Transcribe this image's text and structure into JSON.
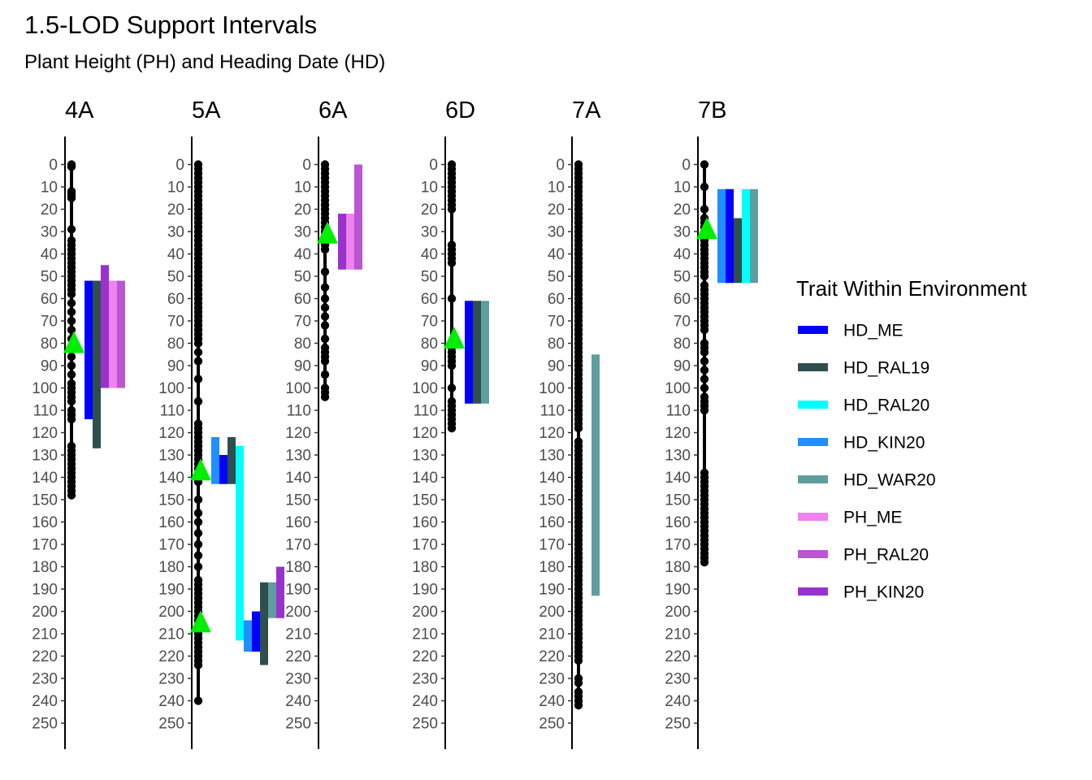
{
  "chart_data": {
    "type": "linkage-map",
    "title": "1.5-LOD Support Intervals",
    "subtitle": "Plant Height (PH) and Heading Date (HD)",
    "y_ticks": [
      0,
      10,
      20,
      30,
      40,
      50,
      60,
      70,
      80,
      90,
      100,
      110,
      120,
      130,
      140,
      150,
      160,
      170,
      180,
      190,
      200,
      210,
      220,
      230,
      240,
      250
    ],
    "ylim": [
      -10,
      262
    ],
    "y_reversed": true,
    "legend": {
      "title": "Trait Within Environment",
      "placement": "right",
      "items": [
        {
          "label": "HD_ME",
          "color": "#0000FF"
        },
        {
          "label": "HD_RAL19",
          "color": "#2F4F4F"
        },
        {
          "label": "HD_RAL20",
          "color": "#00FFFF"
        },
        {
          "label": "HD_KIN20",
          "color": "#1E90FF"
        },
        {
          "label": "HD_WAR20",
          "color": "#5F9EA0"
        },
        {
          "label": "PH_ME",
          "color": "#EE82EE"
        },
        {
          "label": "PH_RAL20",
          "color": "#BA55D3"
        },
        {
          "label": "PH_KIN20",
          "color": "#9932CC"
        }
      ]
    },
    "chromosomes": [
      {
        "name": "4A",
        "length": 149,
        "markers": [
          0,
          1,
          12,
          13,
          14,
          15,
          29,
          34,
          36,
          38,
          40,
          42,
          44,
          46,
          48,
          50,
          52,
          54,
          56,
          58,
          62,
          66,
          70,
          74,
          78,
          86,
          90,
          94,
          98,
          100,
          102,
          104,
          106,
          110,
          112,
          114,
          126,
          128,
          130,
          132,
          134,
          136,
          138,
          140,
          142,
          144,
          146,
          148
        ],
        "intervals": [
          {
            "trait": "HD_ME",
            "start": 52,
            "end": 114
          },
          {
            "trait": "HD_RAL19",
            "start": 52,
            "end": 127
          },
          {
            "trait": "PH_KIN20",
            "start": 45,
            "end": 100
          },
          {
            "trait": "PH_ME",
            "start": 52,
            "end": 100
          },
          {
            "trait": "PH_RAL20",
            "start": 52,
            "end": 100
          }
        ],
        "peaks": [
          80
        ]
      },
      {
        "name": "5A",
        "length": 240,
        "markers": [
          0,
          2,
          4,
          6,
          8,
          10,
          12,
          14,
          16,
          18,
          20,
          22,
          24,
          26,
          28,
          30,
          32,
          34,
          36,
          38,
          40,
          42,
          44,
          46,
          48,
          50,
          52,
          54,
          56,
          58,
          60,
          62,
          64,
          66,
          68,
          70,
          72,
          74,
          76,
          78,
          80,
          84,
          88,
          96,
          106,
          116,
          118,
          120,
          122,
          124,
          126,
          128,
          130,
          132,
          134,
          136,
          138,
          140,
          142,
          150,
          156,
          160,
          165,
          170,
          175,
          180,
          186,
          188,
          190,
          192,
          194,
          196,
          198,
          200,
          202,
          204,
          206,
          208,
          210,
          212,
          214,
          216,
          218,
          220,
          222,
          224,
          240
        ],
        "intervals": [
          {
            "trait": "HD_KIN20",
            "start": 122,
            "end": 143
          },
          {
            "trait": "HD_ME",
            "start": 130,
            "end": 143
          },
          {
            "trait": "HD_RAL19",
            "start": 122,
            "end": 143
          },
          {
            "trait": "HD_RAL20",
            "start": 126,
            "end": 213
          },
          {
            "trait": "HD_KIN20",
            "start": 204,
            "end": 218
          },
          {
            "trait": "HD_ME",
            "start": 200,
            "end": 218
          },
          {
            "trait": "HD_RAL19",
            "start": 187,
            "end": 224
          },
          {
            "trait": "HD_WAR20",
            "start": 187,
            "end": 203
          },
          {
            "trait": "PH_KIN20",
            "start": 180,
            "end": 203
          }
        ],
        "peaks": [
          137,
          205
        ]
      },
      {
        "name": "6A",
        "length": 104,
        "markers": [
          0,
          2,
          4,
          6,
          8,
          10,
          12,
          14,
          16,
          18,
          20,
          22,
          24,
          26,
          28,
          30,
          32,
          34,
          36,
          38,
          48,
          55,
          60,
          64,
          68,
          72,
          78,
          82,
          84,
          86,
          88,
          94,
          100,
          102,
          104
        ],
        "intervals": [
          {
            "trait": "PH_KIN20",
            "start": 22,
            "end": 47
          },
          {
            "trait": "PH_ME",
            "start": 22,
            "end": 47
          },
          {
            "trait": "PH_RAL20",
            "start": 0,
            "end": 47
          }
        ],
        "peaks": [
          31
        ]
      },
      {
        "name": "6D",
        "length": 118,
        "markers": [
          0,
          2,
          4,
          6,
          8,
          10,
          12,
          14,
          16,
          18,
          20,
          36,
          38,
          40,
          42,
          44,
          60,
          80,
          82,
          84,
          86,
          88,
          90,
          100,
          106,
          108,
          110,
          112,
          114,
          116,
          118
        ],
        "intervals": [
          {
            "trait": "HD_ME",
            "start": 61,
            "end": 107
          },
          {
            "trait": "HD_RAL19",
            "start": 61,
            "end": 107
          },
          {
            "trait": "HD_WAR20",
            "start": 61,
            "end": 107
          }
        ],
        "peaks": [
          78
        ]
      },
      {
        "name": "7A",
        "length": 242,
        "markers": [
          0,
          2,
          4,
          6,
          8,
          10,
          12,
          14,
          16,
          18,
          20,
          22,
          24,
          26,
          28,
          30,
          32,
          34,
          36,
          38,
          40,
          42,
          44,
          46,
          48,
          50,
          52,
          54,
          56,
          58,
          60,
          62,
          64,
          66,
          68,
          70,
          72,
          74,
          76,
          78,
          80,
          82,
          84,
          86,
          88,
          90,
          92,
          94,
          96,
          98,
          100,
          102,
          104,
          106,
          108,
          110,
          112,
          114,
          116,
          118,
          124,
          126,
          128,
          130,
          132,
          134,
          136,
          138,
          140,
          142,
          144,
          146,
          148,
          150,
          152,
          154,
          156,
          158,
          160,
          162,
          164,
          166,
          168,
          170,
          172,
          174,
          176,
          178,
          180,
          182,
          184,
          186,
          188,
          190,
          192,
          194,
          196,
          198,
          200,
          202,
          204,
          206,
          208,
          210,
          212,
          214,
          216,
          218,
          220,
          222,
          230,
          232,
          236,
          238,
          240,
          242
        ],
        "intervals": [
          {
            "trait": "HD_WAR20",
            "start": 85,
            "end": 193
          }
        ],
        "peaks": []
      },
      {
        "name": "7B",
        "length": 179,
        "markers": [
          0,
          10,
          20,
          24,
          26,
          28,
          30,
          32,
          34,
          36,
          38,
          40,
          42,
          44,
          46,
          48,
          50,
          54,
          56,
          58,
          60,
          62,
          64,
          66,
          68,
          70,
          72,
          74,
          80,
          82,
          84,
          88,
          92,
          96,
          100,
          104,
          106,
          108,
          110,
          138,
          140,
          142,
          144,
          146,
          148,
          150,
          152,
          154,
          156,
          158,
          160,
          162,
          164,
          166,
          168,
          170,
          172,
          174,
          176,
          178
        ],
        "intervals": [
          {
            "trait": "HD_KIN20",
            "start": 11,
            "end": 53
          },
          {
            "trait": "HD_ME",
            "start": 11,
            "end": 53
          },
          {
            "trait": "HD_RAL19",
            "start": 24,
            "end": 53
          },
          {
            "trait": "HD_RAL20",
            "start": 11,
            "end": 53
          },
          {
            "trait": "HD_WAR20",
            "start": 11,
            "end": 53
          }
        ],
        "peaks": [
          29
        ]
      }
    ],
    "peak_marker_color": "#00EE00",
    "marker_color": "#000000"
  }
}
